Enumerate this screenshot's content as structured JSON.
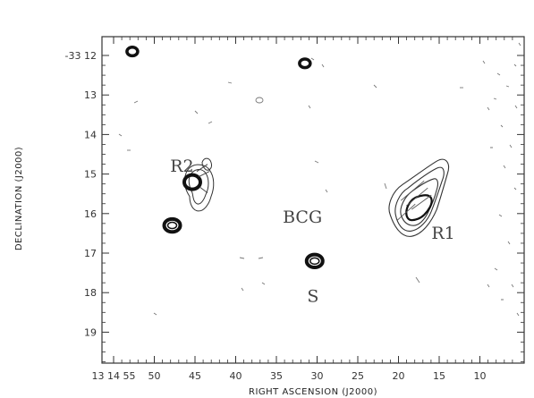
{
  "chart_data": {
    "type": "contour",
    "xlabel": "RIGHT ASCENSION (J2000)",
    "ylabel": "DECLINATION (J2000)",
    "x_ticks": [
      {
        "value": 55,
        "label": "13 14 55"
      },
      {
        "value": 50,
        "label": "50"
      },
      {
        "value": 45,
        "label": "45"
      },
      {
        "value": 40,
        "label": "40"
      },
      {
        "value": 35,
        "label": "35"
      },
      {
        "value": 30,
        "label": "30"
      },
      {
        "value": 25,
        "label": "25"
      },
      {
        "value": 20,
        "label": "20"
      },
      {
        "value": 15,
        "label": "15"
      },
      {
        "value": 10,
        "label": "10"
      }
    ],
    "y_ticks": [
      {
        "value": 12,
        "label": "-33 12"
      },
      {
        "value": 13,
        "label": "13"
      },
      {
        "value": 14,
        "label": "14"
      },
      {
        "value": 15,
        "label": "15"
      },
      {
        "value": 16,
        "label": "16"
      },
      {
        "value": 17,
        "label": "17"
      },
      {
        "value": 18,
        "label": "18"
      },
      {
        "value": 19,
        "label": "19"
      }
    ],
    "xlim": [
      55,
      10
    ],
    "ylim": [
      19.5,
      11.8
    ],
    "annotations": [
      {
        "id": "r2",
        "text": "R2",
        "x": 46.6,
        "y": 14.8
      },
      {
        "id": "bcg",
        "text": "BCG",
        "x": 31.8,
        "y": 16.1
      },
      {
        "id": "r1",
        "text": "R1",
        "x": 14.5,
        "y": 16.5
      },
      {
        "id": "s",
        "text": "S",
        "x": 30.5,
        "y": 18.1
      }
    ],
    "sources": [
      {
        "name": "r2",
        "x": 45.0,
        "y": 15.25,
        "shape": "extended"
      },
      {
        "name": "r1",
        "x": 17.5,
        "y": 15.85,
        "shape": "extended"
      },
      {
        "name": "s",
        "x": 30.3,
        "y": 17.2,
        "shape": "compact"
      },
      {
        "name": "point-a",
        "x": 47.8,
        "y": 16.3,
        "shape": "compact"
      },
      {
        "name": "point-b",
        "x": 52.7,
        "y": 11.9,
        "shape": "compact"
      },
      {
        "name": "point-c",
        "x": 31.5,
        "y": 12.2,
        "shape": "compact"
      }
    ]
  }
}
